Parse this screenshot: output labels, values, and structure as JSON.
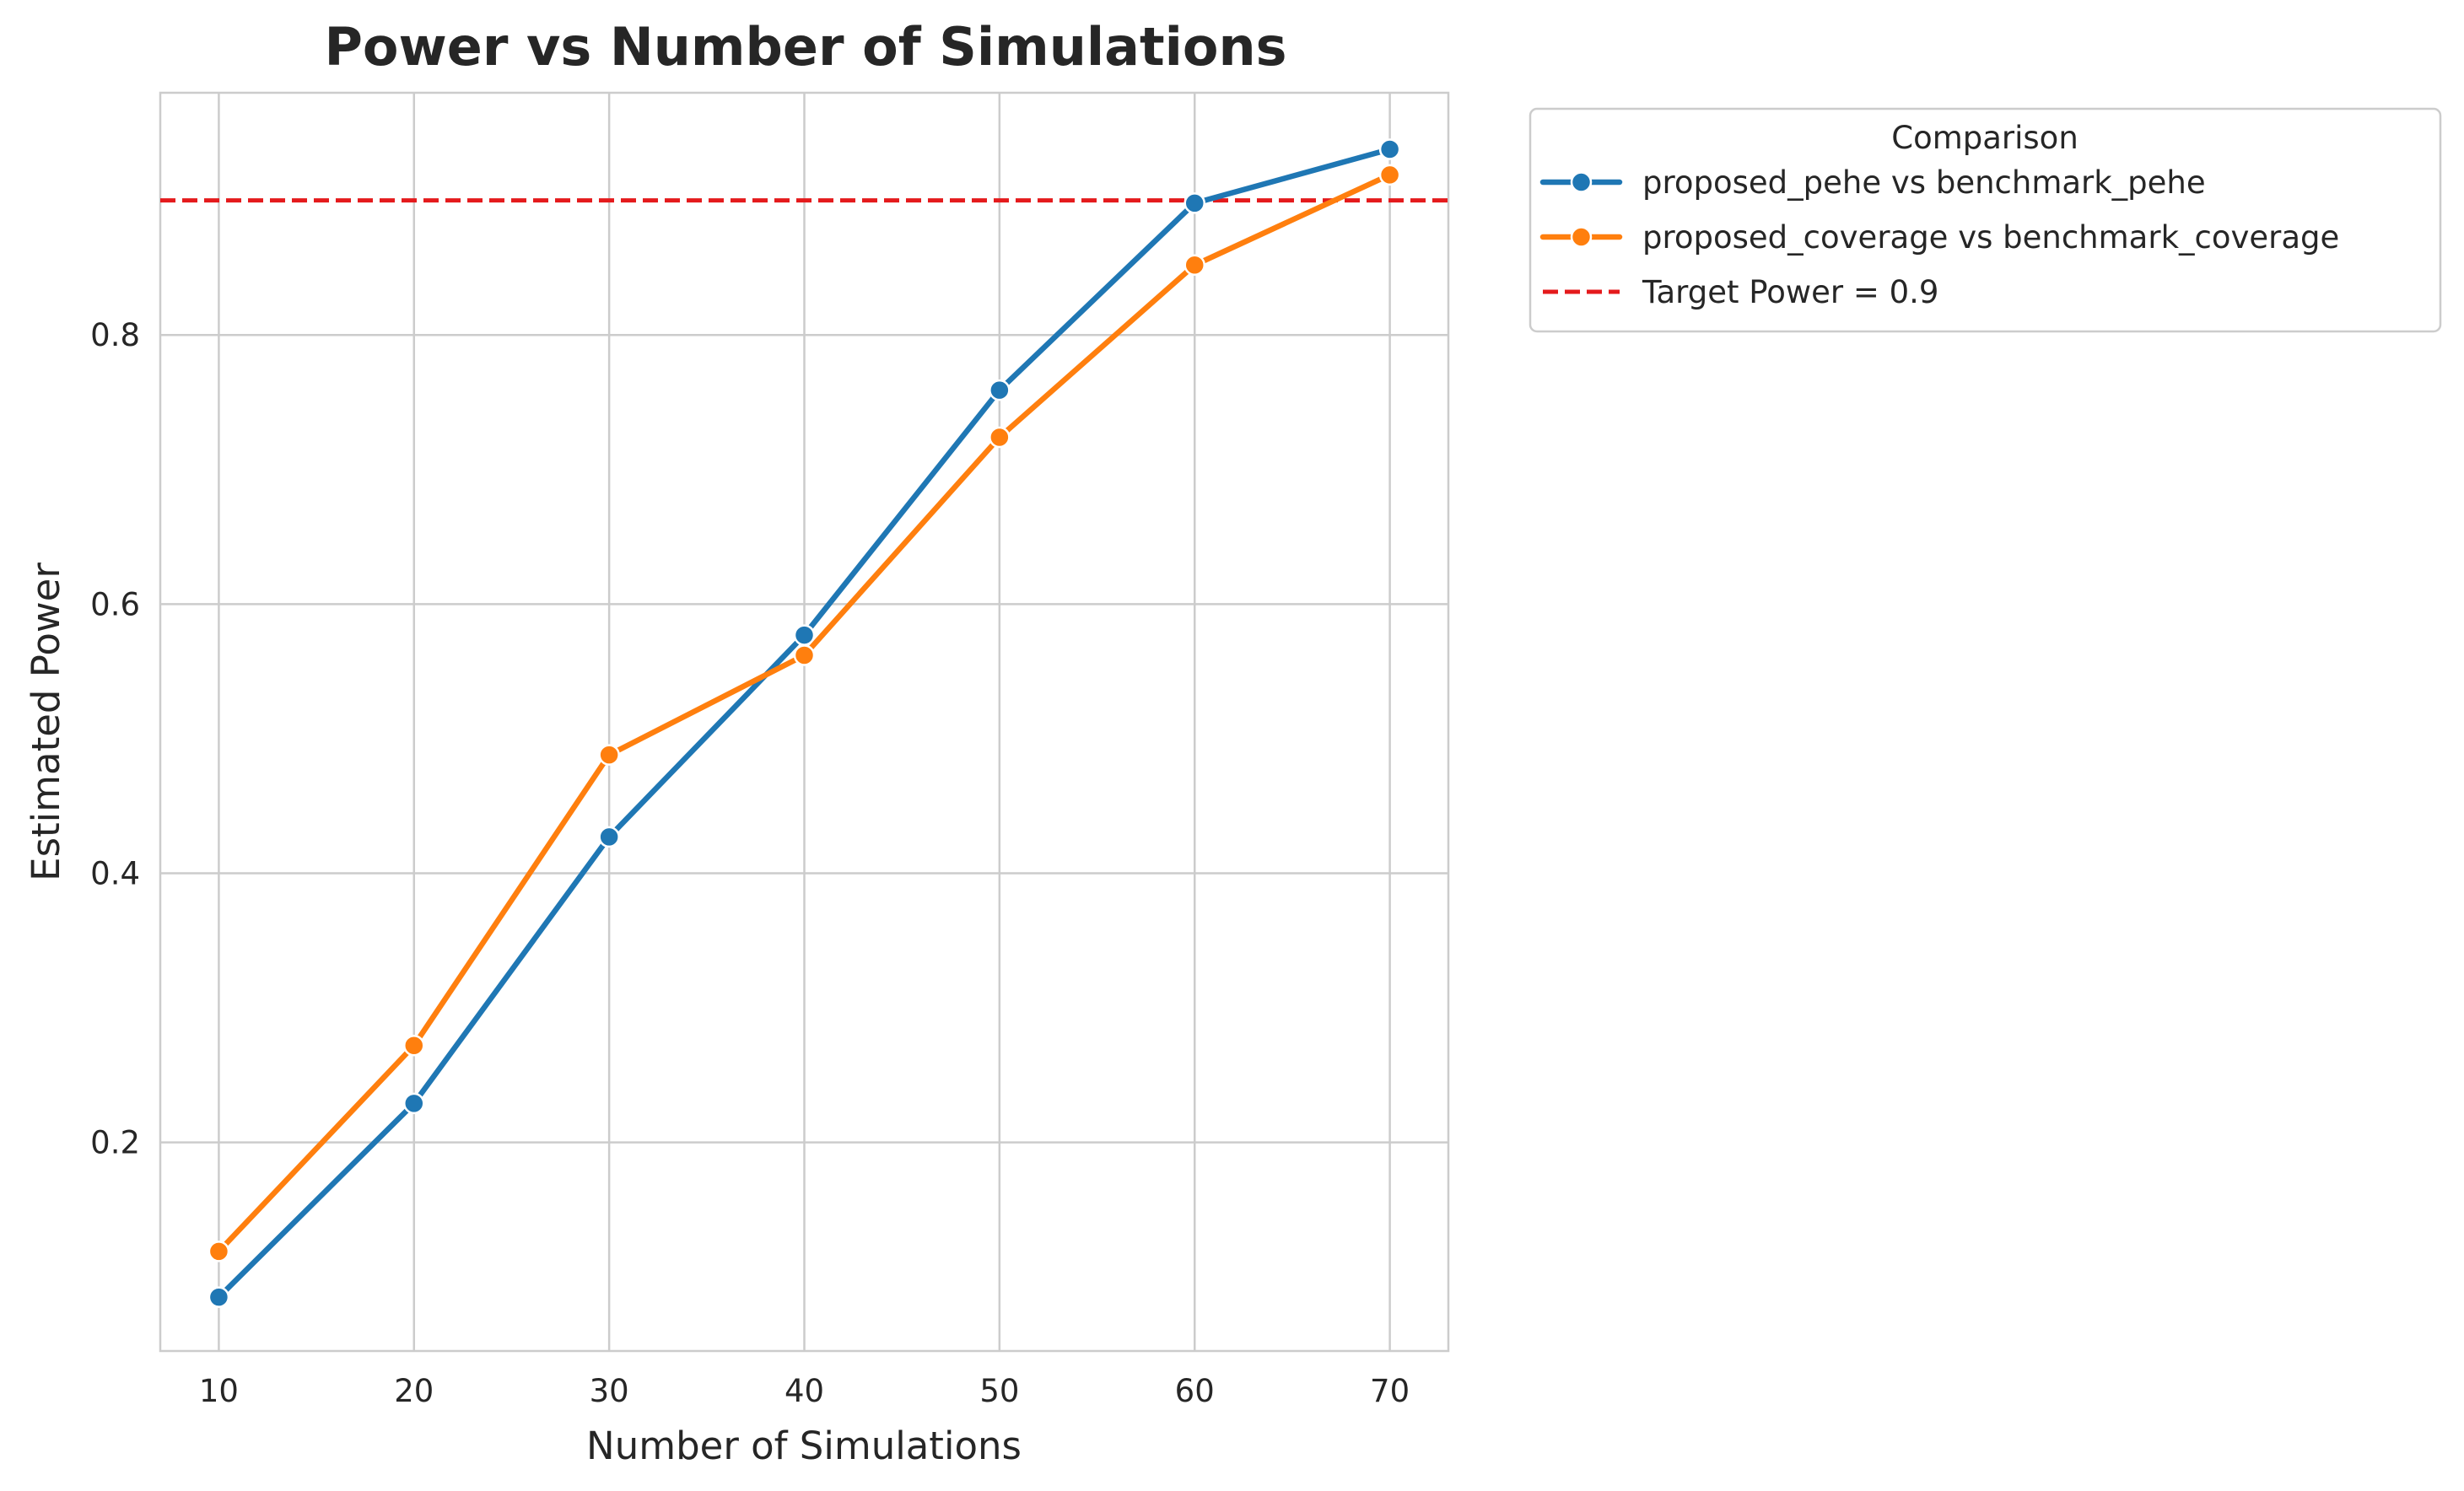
{
  "chart_data": {
    "type": "line",
    "title": "Power vs Number of Simulations",
    "xlabel": "Number of Simulations",
    "ylabel": "Estimated Power",
    "x": [
      10,
      20,
      30,
      40,
      50,
      60,
      70
    ],
    "xlim": [
      7,
      73
    ],
    "ylim": [
      0.045,
      0.98
    ],
    "xticks": [
      10,
      20,
      30,
      40,
      50,
      60,
      70
    ],
    "yticks": [
      0.2,
      0.4,
      0.6,
      0.8
    ],
    "grid": true,
    "series": [
      {
        "name": "proposed_pehe vs benchmark_pehe",
        "color": "#1f77b4",
        "values": [
          0.085,
          0.229,
          0.427,
          0.577,
          0.759,
          0.898,
          0.938
        ]
      },
      {
        "name": "proposed_coverage vs benchmark_coverage",
        "color": "#ff7f0e",
        "values": [
          0.119,
          0.272,
          0.488,
          0.562,
          0.724,
          0.852,
          0.919
        ]
      }
    ],
    "reference_line": {
      "label": "Target Power = 0.9",
      "value": 0.9,
      "color": "#e41a1c",
      "style": "dashed"
    },
    "legend": {
      "title": "Comparison",
      "placement": "outside-top-right"
    }
  }
}
